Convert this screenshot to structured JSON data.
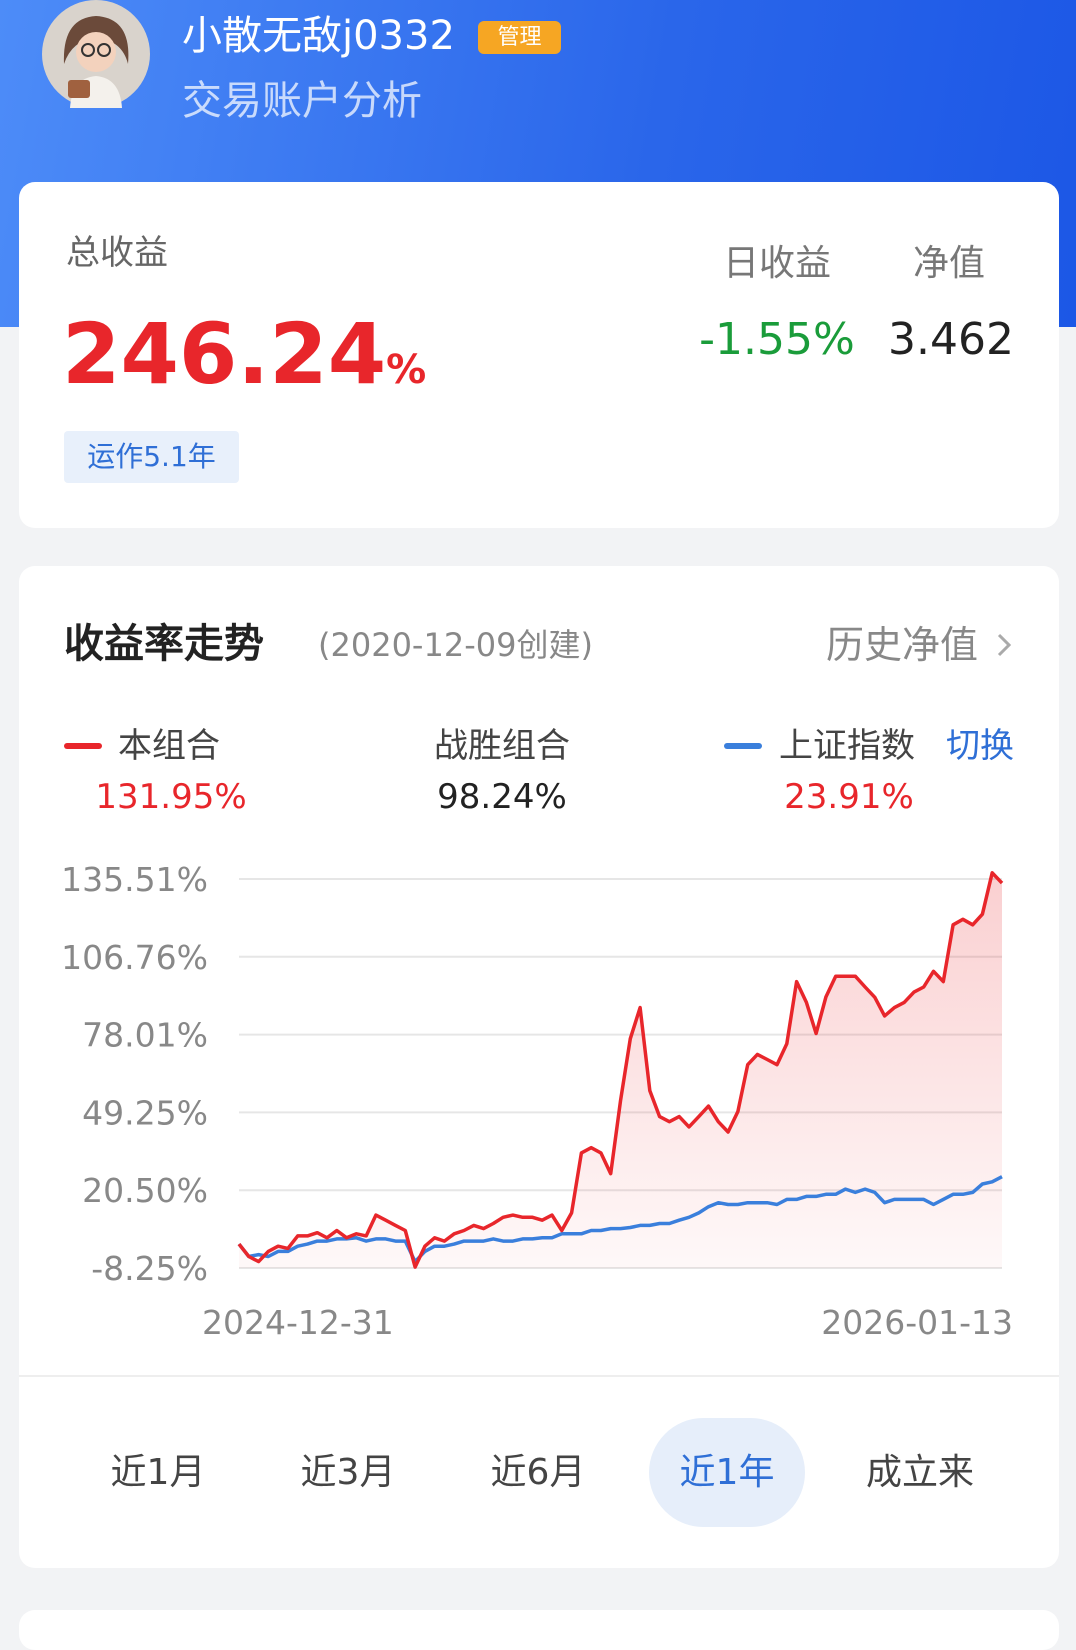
{
  "header": {
    "username": "小散无敌j0332",
    "badge": "管理",
    "subtitle": "交易账户分析"
  },
  "summary": {
    "total_label": "总收益",
    "total_return": "246.24",
    "total_unit": "%",
    "age_tag": "运作5.1年",
    "daily_label": "日收益",
    "daily_return": "-1.55%",
    "nav_label": "净值",
    "nav": "3.462"
  },
  "trend": {
    "title": "收益率走势",
    "created": "(2020-12-09创建)",
    "history_link": "历史净值",
    "beat_label": "战胜组合",
    "beat_value": "98.24%",
    "switch": "切换",
    "tabs": [
      {
        "label": "近1月",
        "active": false
      },
      {
        "label": "近3月",
        "active": false
      },
      {
        "label": "近6月",
        "active": false
      },
      {
        "label": "近1年",
        "active": true
      },
      {
        "label": "成立来",
        "active": false
      }
    ]
  },
  "chart_data": {
    "type": "line",
    "categories": [
      "2024-12-31",
      null,
      null,
      null,
      null,
      null,
      null,
      null,
      null,
      null,
      null,
      null,
      null,
      null,
      null,
      null,
      null,
      null,
      null,
      null,
      null,
      null,
      null,
      null,
      null,
      null,
      null,
      null,
      null,
      null,
      null,
      null,
      null,
      null,
      null,
      null,
      null,
      null,
      null,
      null,
      null,
      null,
      null,
      null,
      null,
      null,
      null,
      null,
      null,
      null,
      null,
      null,
      null,
      null,
      null,
      null,
      null,
      null,
      null,
      null,
      null,
      null,
      null,
      null,
      null,
      null,
      null,
      null,
      null,
      null,
      null,
      null,
      null,
      null,
      null,
      null,
      null,
      null,
      "2026-01-13"
    ],
    "series": [
      {
        "name": "本组合",
        "color": "#e8262b",
        "return_label": "131.95%",
        "values": [
          0.6,
          -4.0,
          -5.9,
          -2.1,
          -0.2,
          -1.0,
          3.6,
          3.6,
          4.8,
          2.9,
          5.6,
          2.9,
          4.4,
          3.6,
          11.3,
          9.4,
          7.5,
          5.6,
          -7.9,
          -0.2,
          2.9,
          1.7,
          4.4,
          5.6,
          7.5,
          6.3,
          8.2,
          10.5,
          11.3,
          10.5,
          10.5,
          9.4,
          11.3,
          5.6,
          12.1,
          34.3,
          36.2,
          34.3,
          26.6,
          53.5,
          76.5,
          88.0,
          57.3,
          47.7,
          45.8,
          47.7,
          43.9,
          47.7,
          51.6,
          45.8,
          42.0,
          49.6,
          66.9,
          70.7,
          68.8,
          66.9,
          74.6,
          97.6,
          89.9,
          78.4,
          91.9,
          99.6,
          99.6,
          99.6,
          95.6,
          91.8,
          84.9,
          88.0,
          89.9,
          93.7,
          95.6,
          101.4,
          97.6,
          118.6,
          120.6,
          118.6,
          122.5,
          137.8,
          134.0
        ]
      },
      {
        "name": "上证指数",
        "color": "#3a7fdc",
        "return_label": "23.91%",
        "values": [
          0.6,
          -4.0,
          -3.3,
          -4.0,
          -2.1,
          -2.1,
          -0.2,
          0.6,
          1.7,
          1.7,
          2.5,
          2.5,
          2.9,
          1.7,
          2.5,
          2.5,
          1.7,
          1.7,
          -5.9,
          -2.1,
          -0.2,
          -0.2,
          0.6,
          1.7,
          1.7,
          1.7,
          2.5,
          1.7,
          1.7,
          2.5,
          2.5,
          2.9,
          2.9,
          4.4,
          4.4,
          4.4,
          5.6,
          5.6,
          6.3,
          6.3,
          6.7,
          7.5,
          7.5,
          8.2,
          8.2,
          9.4,
          10.5,
          12.1,
          14.4,
          15.9,
          15.2,
          15.2,
          15.9,
          15.9,
          15.9,
          15.2,
          17.1,
          17.1,
          18.2,
          18.2,
          19.0,
          19.0,
          20.9,
          19.7,
          20.9,
          19.7,
          15.9,
          17.1,
          17.1,
          17.1,
          17.1,
          15.2,
          17.1,
          19.0,
          19.0,
          19.7,
          22.8,
          23.6,
          25.5
        ]
      }
    ],
    "ylim": [
      -8.25,
      135.51
    ],
    "yticks": [
      {
        "value": 135.51,
        "label": "135.51%"
      },
      {
        "value": 106.76,
        "label": "106.76%"
      },
      {
        "value": 78.01,
        "label": "78.01%"
      },
      {
        "value": 49.25,
        "label": "49.25%"
      },
      {
        "value": 20.5,
        "label": "20.50%"
      },
      {
        "value": -8.25,
        "label": "-8.25%"
      }
    ],
    "grid": true
  }
}
